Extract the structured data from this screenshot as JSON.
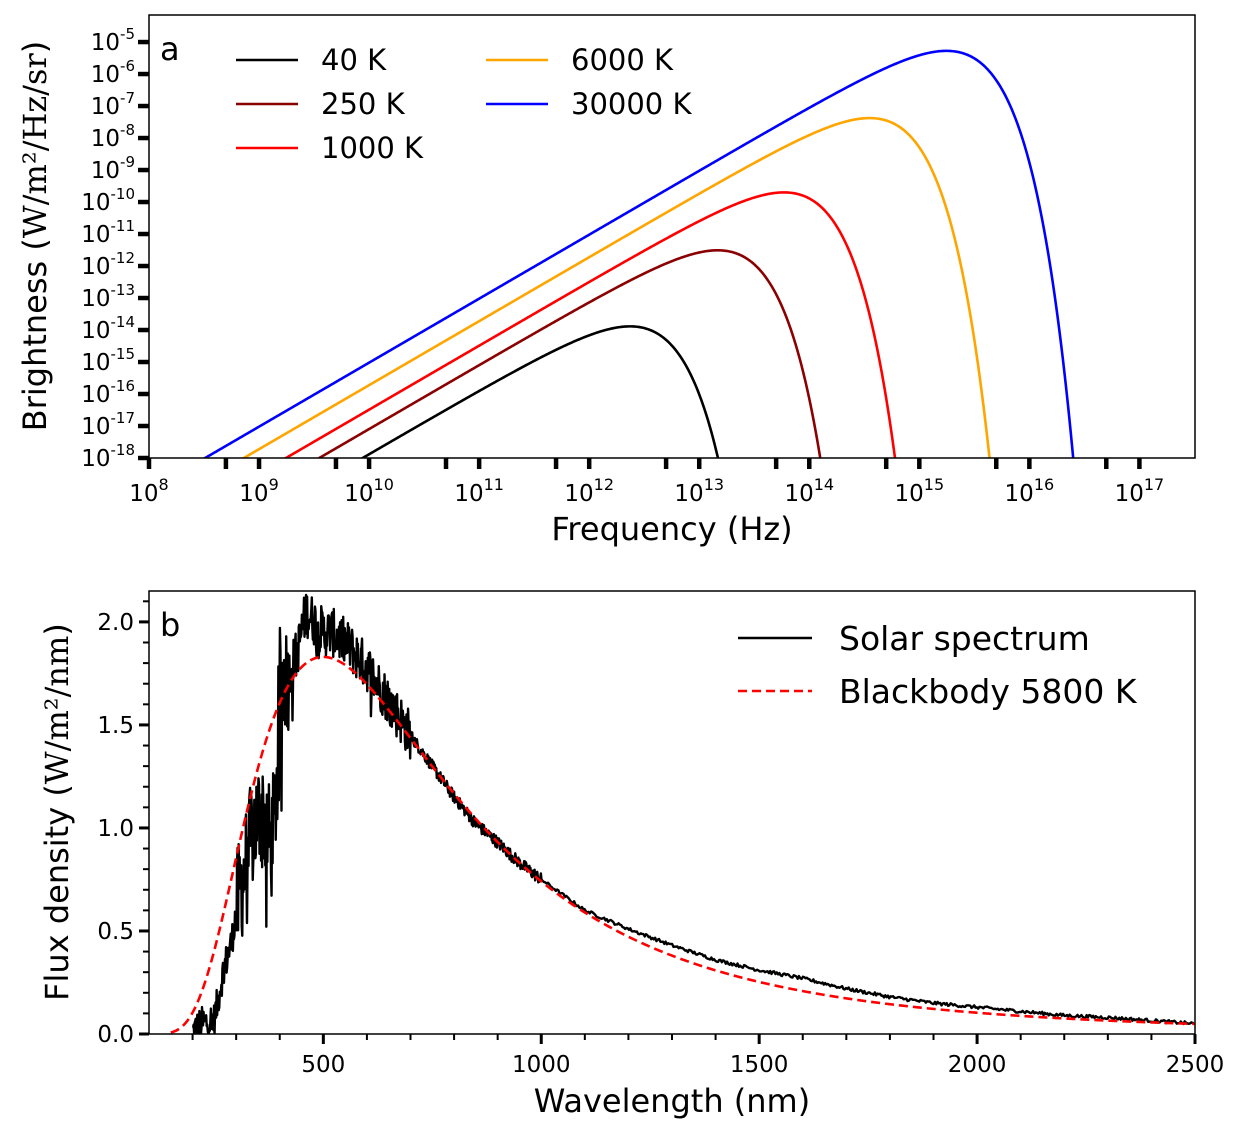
{
  "chart_data": [
    {
      "type": "line",
      "panel_label": "a",
      "xlabel": "Frequency (Hz)",
      "ylabel_prefix": "Brightness (",
      "ylabel_unit": "W/m²/Hz/sr",
      "ylabel_suffix": ")",
      "xscale": "log",
      "yscale": "log",
      "xlim": [
        100000000.0,
        3.2e+17
      ],
      "ylim": [
        1e-18,
        7e-05
      ],
      "x_tick_exponents": [
        8,
        9,
        10,
        11,
        12,
        13,
        14,
        15,
        16,
        17
      ],
      "y_tick_exponents": [
        -18,
        -17,
        -16,
        -15,
        -14,
        -13,
        -12,
        -11,
        -10,
        -9,
        -8,
        -7,
        -6,
        -5
      ],
      "legend_placement": "top-left, two columns",
      "series": [
        {
          "name": "40 K",
          "temperature_K": 40,
          "color": "#000000",
          "peak_x": 2350000000000.0,
          "peak_y": 1.3e-14
        },
        {
          "name": "250 K",
          "temperature_K": 250,
          "color": "#8b0000",
          "peak_x": 14700000000000.0,
          "peak_y": 3.1e-12
        },
        {
          "name": "1000 K",
          "temperature_K": 1000,
          "color": "#ff0000",
          "peak_x": 59000000000000.0,
          "peak_y": 2e-10
        },
        {
          "name": "6000 K",
          "temperature_K": 6000,
          "color": "#ffa500",
          "peak_x": 350000000000000.0,
          "peak_y": 4.2e-08
        },
        {
          "name": "30000 K",
          "temperature_K": 30000,
          "color": "#0000ff",
          "peak_x": 1760000000000000.0,
          "peak_y": 5.3e-06
        }
      ]
    },
    {
      "type": "line",
      "panel_label": "b",
      "xlabel": "Wavelength (nm)",
      "ylabel_prefix": "Flux density (",
      "ylabel_unit": "W/m²/nm",
      "ylabel_suffix": ")",
      "xlim": [
        100,
        2500
      ],
      "ylim": [
        0,
        2.15
      ],
      "x_ticks": [
        500,
        1000,
        1500,
        2000,
        2500
      ],
      "y_ticks": [
        "0.0",
        "0.5",
        "1.0",
        "1.5",
        "2.0"
      ],
      "legend_placement": "top-right",
      "series": [
        {
          "name": "Solar spectrum",
          "color": "#000000",
          "style": "solid",
          "x": [
            200,
            220,
            250,
            270,
            290,
            300,
            320,
            340,
            360,
            380,
            390,
            400,
            420,
            440,
            460,
            480,
            500,
            520,
            550,
            600,
            650,
            700,
            750,
            800,
            850,
            900,
            950,
            1000,
            1100,
            1200,
            1300,
            1400,
            1500,
            1600,
            1700,
            1800,
            1900,
            2000,
            2100,
            2200,
            2300,
            2400,
            2500
          ],
          "y": [
            0.01,
            0.05,
            0.07,
            0.3,
            0.45,
            0.6,
            0.8,
            1.0,
            1.1,
            0.9,
            1.1,
            1.7,
            1.75,
            1.85,
            2.05,
            2.0,
            1.95,
            1.95,
            1.9,
            1.78,
            1.62,
            1.45,
            1.3,
            1.15,
            1.02,
            0.93,
            0.83,
            0.75,
            0.6,
            0.51,
            0.43,
            0.36,
            0.31,
            0.27,
            0.22,
            0.18,
            0.15,
            0.13,
            0.11,
            0.09,
            0.08,
            0.065,
            0.05
          ]
        },
        {
          "name": "Blackbody 5800 K",
          "color": "#ff0000",
          "style": "dashed",
          "temperature_K": 5800,
          "peak_x": 500,
          "peak_y": 1.83
        }
      ]
    }
  ]
}
